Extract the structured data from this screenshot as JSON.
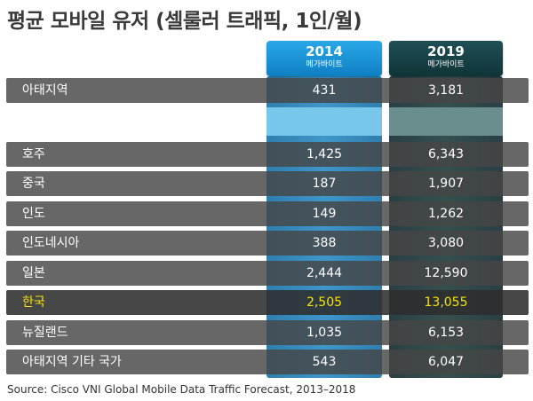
{
  "title": "평균 모바일 유저 (셀룰러 트래픽, 1인/월)",
  "source": "Source: Cisco VNI Global Mobile Data Traffic Forecast, 2013–2018",
  "columns": [
    {
      "year": "2014",
      "unit": "메가바이트"
    },
    {
      "year": "2019",
      "unit": "메가바이트"
    }
  ],
  "colors": {
    "col2014": "#2f8fc4",
    "col2019": "#2f4a4c",
    "highlight": "#f5e10a"
  },
  "chart_data": {
    "type": "table",
    "title": "평균 모바일 유저 (셀룰러 트래픽, 1인/월)",
    "columns": [
      "2014",
      "2019"
    ],
    "unit": "메가바이트",
    "rows": [
      {
        "region": "아태지역",
        "v2014": "431",
        "v2019": "3,181"
      },
      {
        "region": "호주",
        "v2014": "1,425",
        "v2019": "6,343"
      },
      {
        "region": "중국",
        "v2014": "187",
        "v2019": "1,907"
      },
      {
        "region": "인도",
        "v2014": "149",
        "v2019": "1,262"
      },
      {
        "region": "인도네시아",
        "v2014": "388",
        "v2019": "3,080"
      },
      {
        "region": "일본",
        "v2014": "2,444",
        "v2019": "12,590"
      },
      {
        "region": "한국",
        "v2014": "2,505",
        "v2019": "13,055",
        "highlight": true
      },
      {
        "region": "뉴질랜드",
        "v2014": "1,035",
        "v2019": "6,153"
      },
      {
        "region": "아태지역 기타 국가",
        "v2014": "543",
        "v2019": "6,047"
      }
    ]
  }
}
